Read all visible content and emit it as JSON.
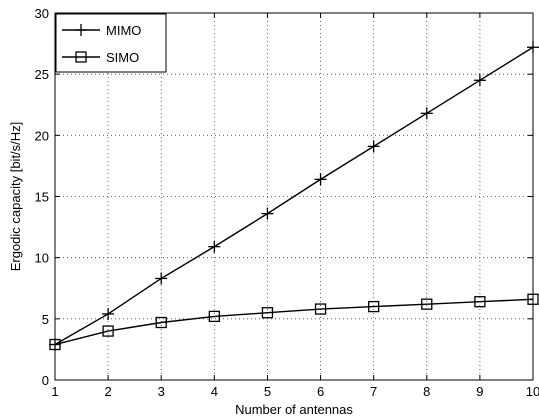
{
  "chart_data": {
    "type": "line",
    "title": "",
    "xlabel": "Number of antennas",
    "ylabel": "Ergodic capacity [bit/s/Hz]",
    "xlim": [
      1,
      10
    ],
    "ylim": [
      0,
      30
    ],
    "xticks": [
      1,
      2,
      3,
      4,
      5,
      6,
      7,
      8,
      9,
      10
    ],
    "yticks": [
      0,
      5,
      10,
      15,
      20,
      25,
      30
    ],
    "grid": true,
    "legend_position": "top-left",
    "x": [
      1,
      2,
      3,
      4,
      5,
      6,
      7,
      8,
      9,
      10
    ],
    "series": [
      {
        "name": "MIMO",
        "marker": "plus",
        "color": "#000000",
        "values": [
          2.9,
          5.4,
          8.3,
          10.9,
          13.6,
          16.4,
          19.1,
          21.8,
          24.5,
          27.2
        ]
      },
      {
        "name": "SIMO",
        "marker": "square",
        "color": "#000000",
        "values": [
          2.9,
          4.0,
          4.7,
          5.2,
          5.5,
          5.8,
          6.0,
          6.2,
          6.4,
          6.6
        ]
      }
    ]
  }
}
